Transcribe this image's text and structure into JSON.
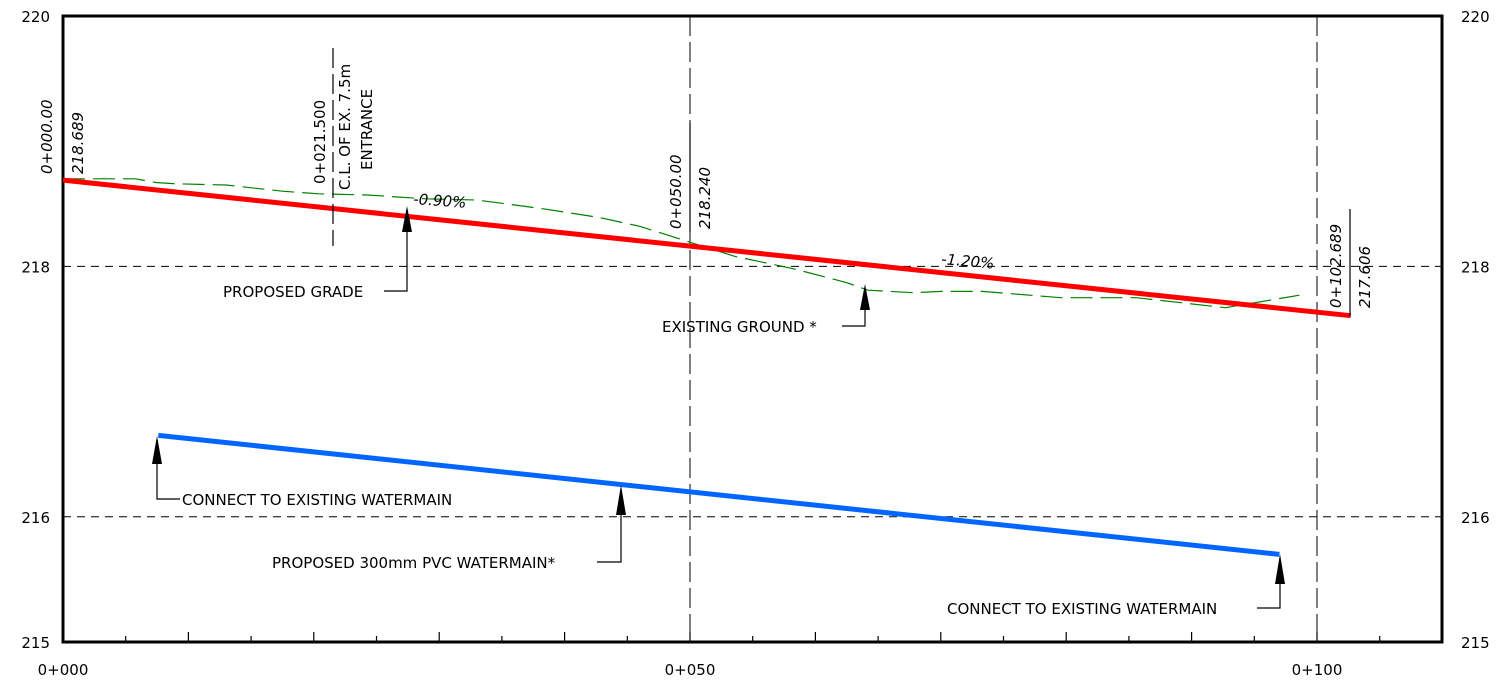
{
  "chart_data": {
    "type": "line",
    "title": "",
    "xlabel": "",
    "ylabel": "",
    "xlim": [
      0,
      110
    ],
    "ylim": [
      215,
      220
    ],
    "grid": true,
    "x_ticks": [
      {
        "value": 0,
        "label": "0+000"
      },
      {
        "value": 50,
        "label": "0+050"
      },
      {
        "value": 100,
        "label": "0+100"
      }
    ],
    "y_ticks": [
      {
        "value": 215,
        "label": "215"
      },
      {
        "value": 216,
        "label": "216"
      },
      {
        "value": 218,
        "label": "218"
      },
      {
        "value": 220,
        "label": "220"
      }
    ],
    "series": [
      {
        "key": "proposed_grade",
        "color": "#ff0000",
        "style": "solid",
        "x": [
          0,
          102.689
        ],
        "y": [
          218.689,
          217.606
        ]
      },
      {
        "key": "existing_ground",
        "color": "#008000",
        "style": "dashed",
        "x": [
          0,
          5.8,
          7.4,
          9.0,
          13.0,
          17.6,
          20.4,
          24.3,
          28.9,
          33.0,
          38.3,
          42.8,
          46.0,
          49.8,
          53.6,
          58.3,
          62.5,
          64.2,
          67.8,
          70.0,
          73.3,
          77.1,
          79.6,
          85.6,
          92.7,
          98.6
        ],
        "y": [
          218.7,
          218.7,
          218.67,
          218.66,
          218.65,
          218.6,
          218.58,
          218.57,
          218.54,
          218.53,
          218.46,
          218.39,
          218.32,
          218.2,
          218.08,
          217.98,
          217.87,
          217.81,
          217.79,
          217.8,
          217.8,
          217.77,
          217.75,
          217.75,
          217.67,
          217.77
        ]
      },
      {
        "key": "proposed_watermain",
        "color": "#0066ff",
        "style": "solid",
        "x": [
          7.6,
          97.0
        ],
        "y": [
          216.65,
          215.7
        ]
      }
    ],
    "annotations": {
      "station_start": {
        "station": "0+000.00",
        "elevation": "218.689"
      },
      "entrance": {
        "station": "0+021.500",
        "line1": "C.L. OF EX. 7.5m",
        "line2": "ENTRANCE"
      },
      "station_mid": {
        "station": "0+050.00",
        "elevation": "218.240"
      },
      "station_end": {
        "station": "0+102.689",
        "elevation": "217.606"
      },
      "slope_1": "-0.90%",
      "slope_2": "-1.20%",
      "proposed_grade": "PROPOSED GRADE",
      "existing_ground": "EXISTING GROUND *",
      "connect_left": "CONNECT TO EXISTING WATERMAIN",
      "connect_right": "CONNECT TO EXISTING WATERMAIN",
      "watermain": "PROPOSED 300mm PVC WATERMAIN*"
    }
  }
}
